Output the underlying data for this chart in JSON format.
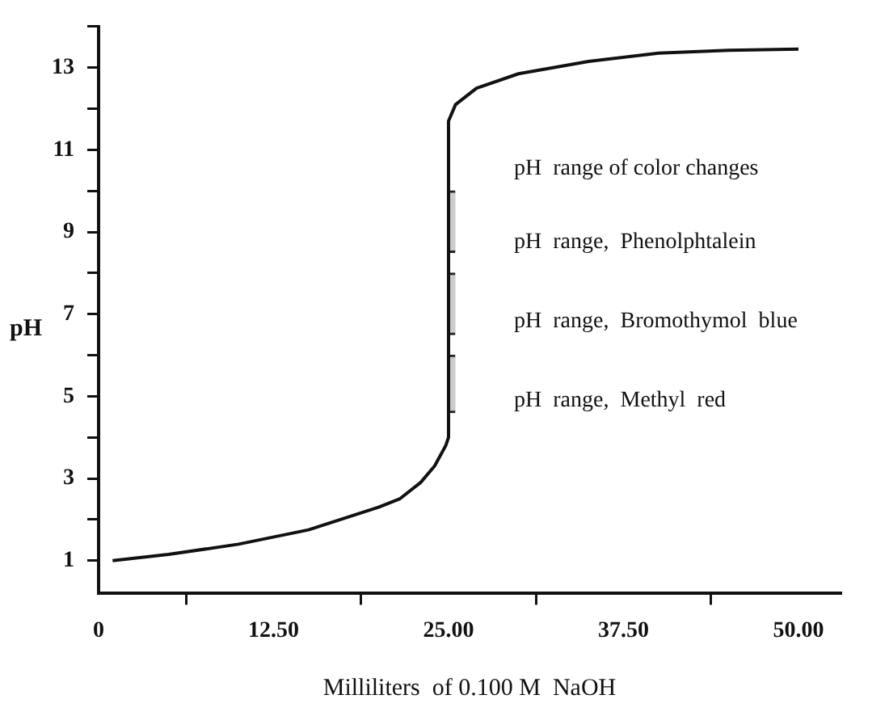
{
  "chart_data": {
    "type": "line",
    "xlabel": "Milliliters  of 0.100 M  NaOH",
    "ylabel": "pH",
    "xlim": [
      0,
      53
    ],
    "xticks": [
      {
        "value": 0,
        "label": "0"
      },
      {
        "value": 12.5,
        "label": "12.50"
      },
      {
        "value": 25,
        "label": "25.00"
      },
      {
        "value": 37.5,
        "label": "37.50"
      },
      {
        "value": 50,
        "label": "50.00"
      }
    ],
    "ylim": [
      0.2,
      14
    ],
    "yticks": [
      1,
      {
        "value": 2,
        "label": null
      },
      3,
      {
        "value": 4,
        "label": null
      },
      5,
      {
        "value": 6,
        "label": null
      },
      7,
      {
        "value": 8,
        "label": null
      },
      9,
      {
        "value": 10,
        "label": null
      },
      11,
      {
        "value": 12,
        "label": null
      },
      13,
      {
        "value": 14,
        "label": null
      }
    ],
    "grid": false,
    "legend": false,
    "marker": "none",
    "line_style": "solid",
    "series": [
      {
        "color": "#111111",
        "x": [
          1,
          5,
          10,
          15,
          20,
          21.5,
          23,
          24,
          24.8,
          25,
          25,
          25.5,
          27,
          30,
          35,
          40,
          45,
          50
        ],
        "values": [
          1,
          1.15,
          1.4,
          1.75,
          2.3,
          2.5,
          2.9,
          3.3,
          3.8,
          4,
          11.7,
          12.1,
          12.5,
          12.85,
          13.15,
          13.35,
          13.42,
          13.45
        ]
      },
      {
        "type": "bar",
        "color": "#cccccc",
        "x": [
          25.2
        ],
        "base": [
          8.5
        ],
        "values": [
          1.5
        ]
      },
      {
        "type": "bar",
        "color": "#cccccc",
        "x": [
          25.2
        ],
        "base": [
          6.5
        ],
        "values": [
          1.5
        ]
      },
      {
        "type": "bar",
        "color": "#cccccc",
        "x": [
          25.2
        ],
        "base": [
          4.6
        ],
        "values": [
          1.4
        ]
      }
    ],
    "annotations": [
      "pH  range of color changes",
      "pH  range,  Phenolphtalein",
      "pH  range,  Bromothymol  blue",
      "pH  range,  Methyl  red"
    ]
  }
}
